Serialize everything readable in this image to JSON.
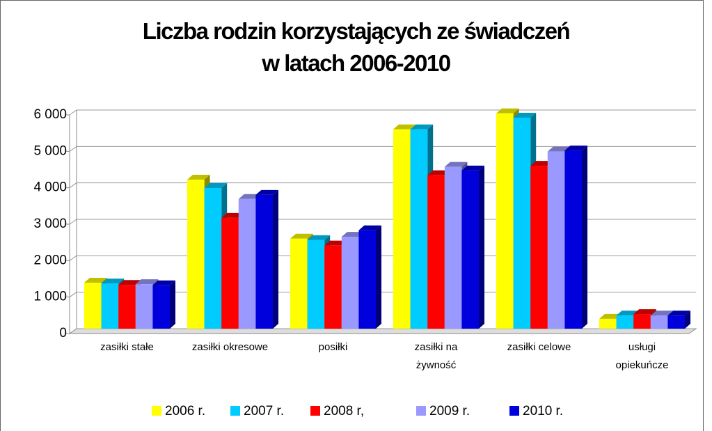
{
  "chart_data": {
    "type": "bar3d",
    "title": [
      "Liczba rodzin korzystających ze świadczeń",
      "w latach 2006-2010"
    ],
    "categories": [
      "zasiłki stałe",
      "zasiłki okresowe",
      "posiłki",
      "zasiłki na żywność",
      "zasiłki celowe",
      "usługi opiekuńcze"
    ],
    "series": [
      {
        "name": "2006 r.",
        "color": "#ffff00",
        "values": [
          1260,
          4090,
          2470,
          5470,
          5910,
          270
        ]
      },
      {
        "name": "2007 r.",
        "color": "#00ccff",
        "values": [
          1240,
          3860,
          2430,
          5470,
          5790,
          360
        ]
      },
      {
        "name": "2008 r,",
        "color": "#ff0000",
        "values": [
          1200,
          3040,
          2280,
          4210,
          4470,
          400
        ]
      },
      {
        "name": "2009 r.",
        "color": "#9999ff",
        "values": [
          1220,
          3560,
          2520,
          4440,
          4860,
          360
        ]
      },
      {
        "name": "2010 r.",
        "color": "#0000dd",
        "values": [
          1190,
          3670,
          2700,
          4340,
          4890,
          360
        ]
      }
    ],
    "ylim": [
      0,
      6000
    ],
    "yticks": [
      0,
      {
        "value": 1000,
        "label": "1 000"
      },
      {
        "value": 2000,
        "label": "2 000"
      },
      {
        "value": 3000,
        "label": "3 000"
      },
      {
        "value": 4000,
        "label": "4 000"
      },
      {
        "value": 5000,
        "label": "5 000"
      },
      {
        "value": 6000,
        "label": "6 000"
      }
    ],
    "grid": true,
    "legend": "bottom"
  }
}
